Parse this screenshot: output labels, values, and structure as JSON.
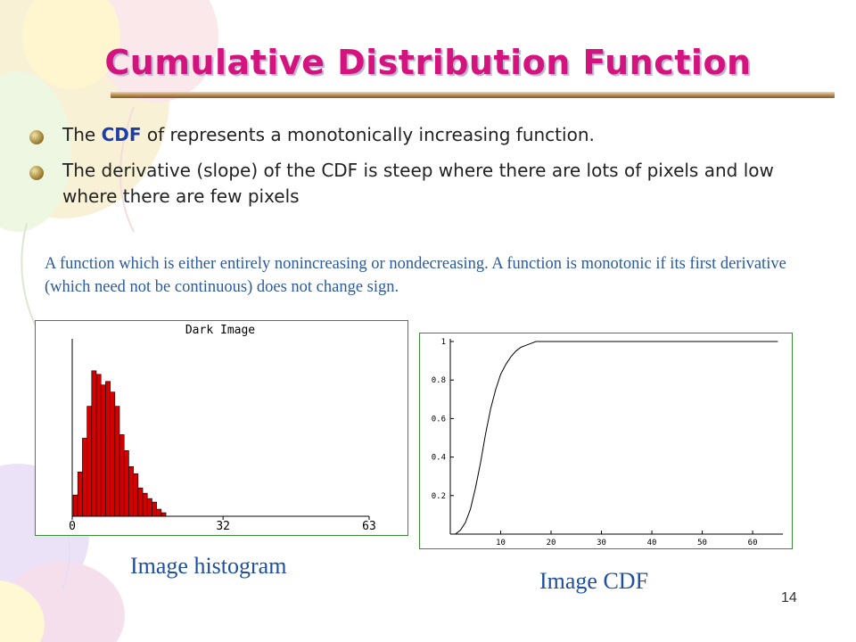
{
  "slide": {
    "title": "Cumulative Distribution Function",
    "page_number": "14",
    "bullets": [
      {
        "pre": "The ",
        "em": "CDF",
        "post": " of represents a monotonically increasing function."
      },
      {
        "pre": "The derivative (slope) of the CDF is steep where there are lots of pixels and low where there are few pixels",
        "em": "",
        "post": ""
      }
    ],
    "note": "A function which is either entirely nonincreasing or nondecreasing. A function is monotonic if its first derivative (which need not be continuous) does not change sign.",
    "captions": {
      "histogram": "Image histogram",
      "cdf": "Image CDF"
    },
    "colors": {
      "title": "#d4147e",
      "emphasis": "#1d3ea8",
      "note": "#2c5a9e",
      "caption": "#1f4fa0",
      "bar": "#d40000"
    }
  },
  "chart_data": [
    {
      "type": "bar",
      "title": "Dark Image",
      "x_ticks": [
        "0",
        "32",
        "63"
      ],
      "xlim": [
        0,
        63
      ],
      "categories": [
        0,
        1,
        2,
        3,
        4,
        5,
        6,
        7,
        8,
        9,
        10,
        11,
        12,
        13,
        14,
        15,
        16,
        17,
        18,
        19
      ],
      "values": [
        0.12,
        0.25,
        0.44,
        0.62,
        0.82,
        0.8,
        0.74,
        0.76,
        0.7,
        0.62,
        0.46,
        0.37,
        0.28,
        0.24,
        0.16,
        0.13,
        0.1,
        0.08,
        0.04,
        0.02
      ]
    },
    {
      "type": "line",
      "title": "",
      "x_ticks": [
        "10",
        "20",
        "30",
        "40",
        "50",
        "60"
      ],
      "y_ticks": [
        "0.2",
        "0.4",
        "0.6",
        "0.8",
        "1"
      ],
      "xlim": [
        0,
        66
      ],
      "ylim": [
        0,
        1
      ],
      "x": [
        1,
        2,
        3,
        4,
        5,
        6,
        7,
        8,
        9,
        10,
        11,
        12,
        13,
        14,
        15,
        16,
        17,
        18,
        20,
        30,
        40,
        50,
        60,
        65
      ],
      "y": [
        0.0,
        0.02,
        0.06,
        0.13,
        0.24,
        0.37,
        0.52,
        0.65,
        0.75,
        0.83,
        0.88,
        0.92,
        0.95,
        0.97,
        0.98,
        0.99,
        1.0,
        1.0,
        1.0,
        1.0,
        1.0,
        1.0,
        1.0,
        1.0
      ]
    }
  ]
}
